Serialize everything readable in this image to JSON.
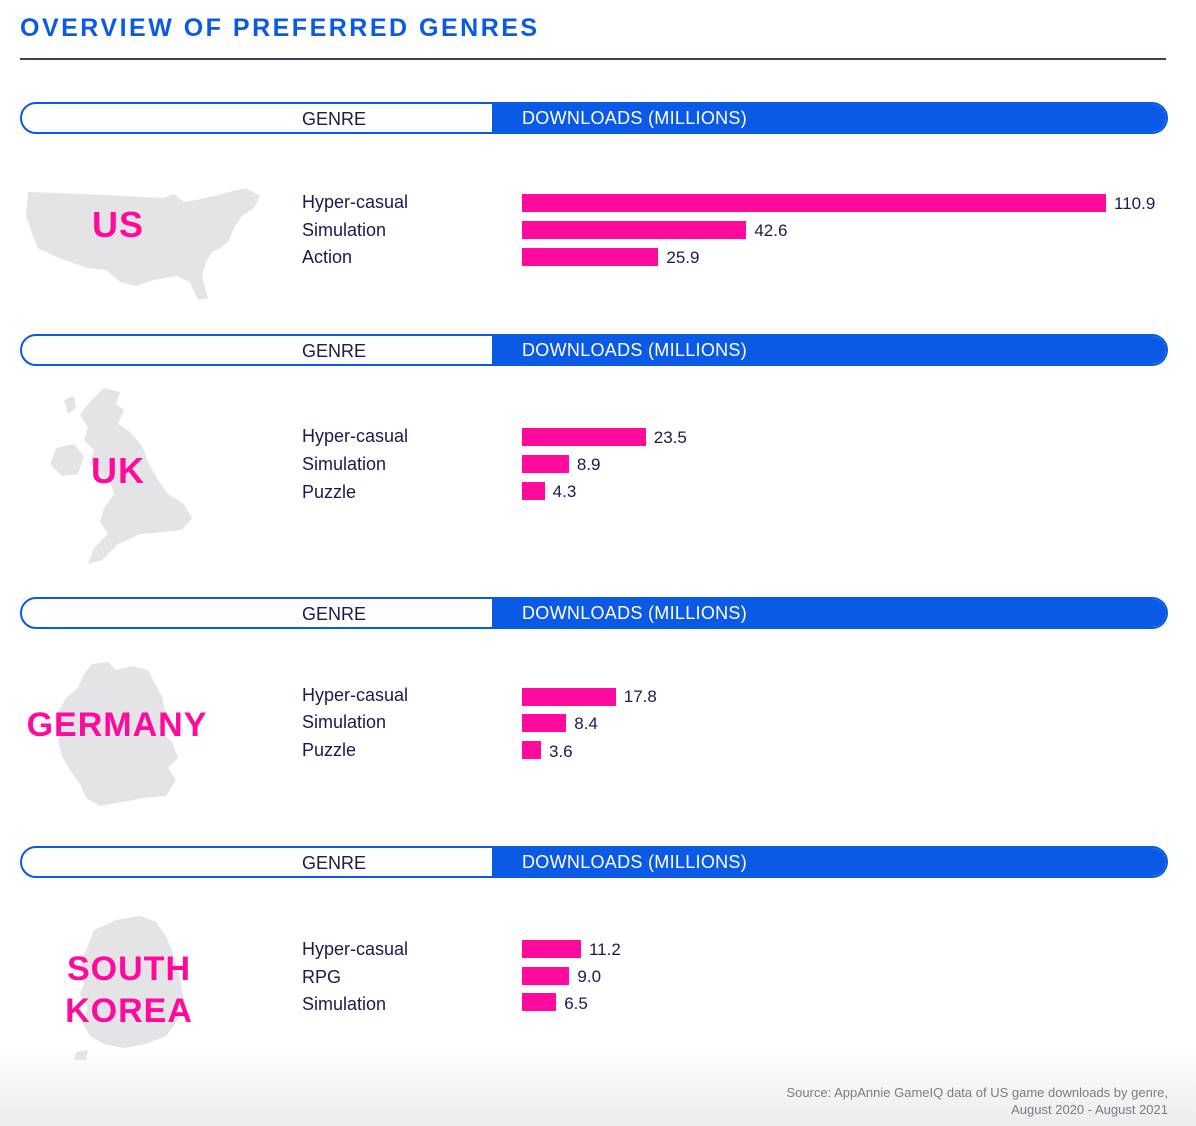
{
  "title": "OVERVIEW OF PREFERRED GENRES",
  "header": {
    "genre": "GENRE",
    "downloads": "DOWNLOADS (MILLIONS)"
  },
  "colors": {
    "accent": "#0a5ae6",
    "bar": "#ff0a9c",
    "text": "#1a1a4e",
    "map": "#e4e4e6"
  },
  "source": {
    "line1": "Source: AppAnnie GameIQ data of US game downloads by genre,",
    "line2": "August 2020 - August 2021"
  },
  "chart_data": [
    {
      "type": "bar",
      "country": "US",
      "categories": [
        "Hyper-casual",
        "Simulation",
        "Action"
      ],
      "values": [
        110.9,
        42.6,
        25.9
      ],
      "value_labels": [
        "110.9",
        "42.6",
        "25.9"
      ]
    },
    {
      "type": "bar",
      "country": "UK",
      "categories": [
        "Hyper-casual",
        "Simulation",
        "Puzzle"
      ],
      "values": [
        23.5,
        8.9,
        4.3
      ],
      "value_labels": [
        "23.5",
        "8.9",
        "4.3"
      ]
    },
    {
      "type": "bar",
      "country": "GERMANY",
      "categories": [
        "Hyper-casual",
        "Simulation",
        "Puzzle"
      ],
      "values": [
        17.8,
        8.4,
        3.6
      ],
      "value_labels": [
        "17.8",
        "8.4",
        "3.6"
      ]
    },
    {
      "type": "bar",
      "country_lines": [
        "SOUTH",
        "KOREA"
      ],
      "categories": [
        "Hyper-casual",
        "RPG",
        "Simulation"
      ],
      "values": [
        11.2,
        9.0,
        6.5
      ],
      "value_labels": [
        "11.2",
        "9.0",
        "6.5"
      ]
    }
  ]
}
